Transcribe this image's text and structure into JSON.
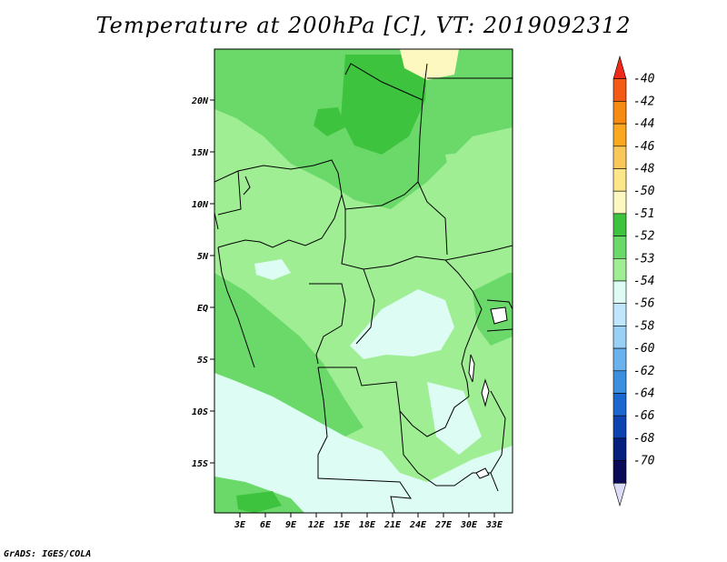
{
  "title": "Temperature at 200hPa [C], VT: 2019092312",
  "credit": "GrADS: IGES/COLA",
  "map": {
    "lat_labels": [
      "20N",
      "15N",
      "10N",
      "5N",
      "EQ",
      "5S",
      "10S",
      "15S"
    ],
    "lon_labels": [
      "3E",
      "6E",
      "9E",
      "12E",
      "15E",
      "18E",
      "21E",
      "24E",
      "27E",
      "30E",
      "33E"
    ]
  },
  "colorbar": {
    "labels": [
      "-40",
      "-42",
      "-44",
      "-46",
      "-48",
      "-50",
      "-51",
      "-52",
      "-53",
      "-54",
      "-56",
      "-58",
      "-60",
      "-62",
      "-64",
      "-66",
      "-68",
      "-70"
    ],
    "colors": [
      "#f02a1a",
      "#f35a14",
      "#f78a10",
      "#f9a820",
      "#fac85a",
      "#fbe68a",
      "#fcf8c0",
      "#3ec33e",
      "#6ad96a",
      "#a0ee94",
      "#dcfcf4",
      "#bfe6fb",
      "#98d0f6",
      "#6ab2ee",
      "#3c8fdf",
      "#1a68cf",
      "#0d43b0",
      "#06207e",
      "#0a0a56",
      "#dcdcf8"
    ]
  }
}
